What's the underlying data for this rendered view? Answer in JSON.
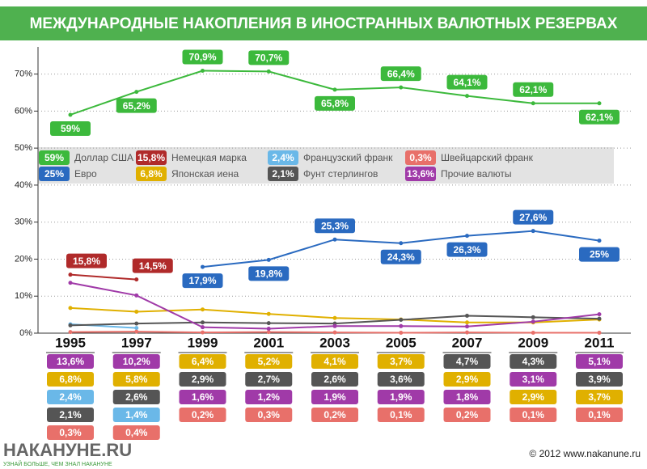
{
  "chart_data": {
    "type": "line",
    "title": "МЕЖДУНАРОДНЫЕ НАКОПЛЕНИЯ В ИНОСТРАННЫХ ВАЛЮТНЫХ РЕЗЕРВАХ",
    "categories": [
      "1995",
      "1997",
      "1999",
      "2001",
      "2003",
      "2005",
      "2007",
      "2009",
      "2011"
    ],
    "ylim": [
      0,
      78
    ],
    "yticks": [
      {
        "value": 0,
        "label": "0%"
      },
      {
        "value": 10,
        "label": "10%"
      },
      {
        "value": 20,
        "label": "20%"
      },
      {
        "value": 30,
        "label": "30%"
      },
      {
        "value": 40,
        "label": "40%"
      },
      {
        "value": 50,
        "label": "50%"
      },
      {
        "value": 60,
        "label": "60%"
      },
      {
        "value": 70,
        "label": "70%"
      }
    ],
    "grid": true,
    "series": [
      {
        "name": "Доллар США",
        "color": "#3cb93c",
        "values": [
          59,
          65.2,
          70.9,
          70.7,
          65.8,
          66.4,
          64.1,
          62.1,
          62.1
        ],
        "value_labels": [
          "59%",
          "65,2%",
          "70,9%",
          "70,7%",
          "65,8%",
          "66,4%",
          "64,1%",
          "62,1%",
          "62,1%"
        ]
      },
      {
        "name": "Евро",
        "color": "#2a6ac0",
        "values": [
          null,
          null,
          17.9,
          19.8,
          25.3,
          24.3,
          26.3,
          27.6,
          25
        ],
        "value_labels": [
          null,
          null,
          "17,9%",
          "19,8%",
          "25,3%",
          "24,3%",
          "26,3%",
          "27,6%",
          "25%"
        ]
      },
      {
        "name": "Немецкая марка",
        "color": "#b02a2a",
        "values": [
          15.8,
          14.5,
          null,
          null,
          null,
          null,
          null,
          null,
          null
        ],
        "value_labels": [
          "15,8%",
          "14,5%",
          null,
          null,
          null,
          null,
          null,
          null,
          null
        ]
      },
      {
        "name": "Японская иена",
        "color": "#e0b000",
        "values": [
          6.8,
          5.8,
          6.4,
          5.2,
          4.1,
          3.7,
          2.9,
          2.9,
          3.7
        ],
        "value_labels": [
          "6,8%",
          "5,8%",
          "6,4%",
          "5,2%",
          "4,1%",
          "3,7%",
          "2,9%",
          "2,9%",
          "3,7%"
        ]
      },
      {
        "name": "Французский франк",
        "color": "#6ab8e8",
        "values": [
          2.4,
          1.4,
          null,
          null,
          null,
          null,
          null,
          null,
          null
        ],
        "value_labels": [
          "2,4%",
          "1,4%",
          null,
          null,
          null,
          null,
          null,
          null,
          null
        ]
      },
      {
        "name": "Фунт стерлингов",
        "color": "#555555",
        "values": [
          2.1,
          2.6,
          2.9,
          2.7,
          2.6,
          3.6,
          4.7,
          4.3,
          3.9
        ],
        "value_labels": [
          "2,1%",
          "2,6%",
          "2,9%",
          "2,7%",
          "2,6%",
          "3,6%",
          "4,7%",
          "4,3%",
          "3,9%"
        ]
      },
      {
        "name": "Швейцарский франк",
        "color": "#e8706a",
        "values": [
          0.3,
          0.4,
          0.2,
          0.3,
          0.2,
          0.1,
          0.2,
          0.1,
          0.1
        ],
        "value_labels": [
          "0,3%",
          "0,4%",
          "0,2%",
          "0,3%",
          "0,2%",
          "0,1%",
          "0,2%",
          "0,1%",
          "0,1%"
        ]
      },
      {
        "name": "Прочие валюты",
        "color": "#a03aa8",
        "values": [
          13.6,
          10.2,
          1.6,
          1.2,
          1.9,
          1.9,
          1.8,
          3.1,
          5.1
        ],
        "value_labels": [
          "13,6%",
          "10,2%",
          "1,6%",
          "1,2%",
          "1,9%",
          "1,9%",
          "1,8%",
          "3,1%",
          "5,1%"
        ]
      }
    ]
  },
  "footer": {
    "logo": "НАКАНУНЕ.RU",
    "slogan": "УЗНАЙ БОЛЬШЕ, ЧЕМ ЗНАЛ НАКАНУНЕ",
    "copyright": "© 2012 www.nakanune.ru"
  }
}
